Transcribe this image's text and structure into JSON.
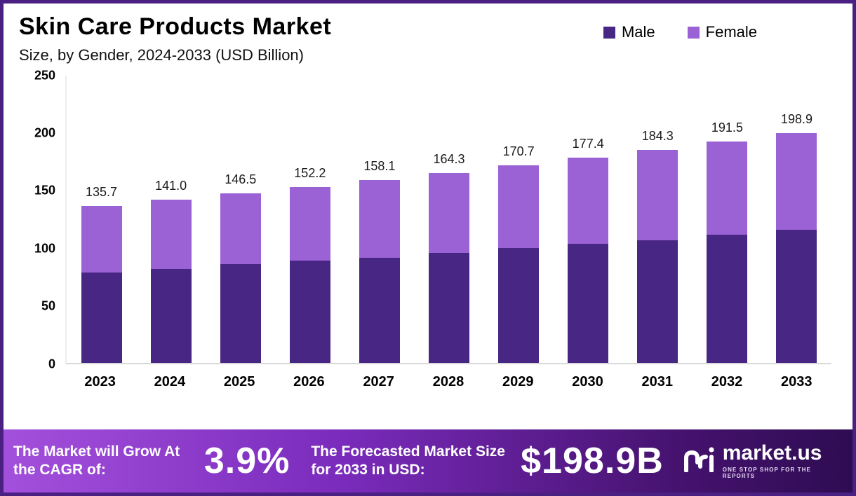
{
  "title": "Skin Care Products Market",
  "subtitle": "Size, by Gender, 2024-2033 (USD Billion)",
  "legend": [
    {
      "label": "Male",
      "color": "#482683"
    },
    {
      "label": "Female",
      "color": "#9B62D6"
    }
  ],
  "chart_data": {
    "type": "bar",
    "stacked": true,
    "title": "Skin Care Products Market Size, by Gender, 2024-2033 (USD Billion)",
    "categories": [
      "2023",
      "2024",
      "2025",
      "2026",
      "2027",
      "2028",
      "2029",
      "2030",
      "2031",
      "2032",
      "2033"
    ],
    "series": [
      {
        "name": "Male",
        "color": "#482683",
        "values": [
          78,
          81,
          85,
          88,
          91,
          95,
          99,
          103,
          106,
          111,
          115
        ]
      },
      {
        "name": "Female",
        "color": "#9B62D6",
        "values": [
          57.7,
          60.0,
          61.5,
          64.2,
          67.1,
          69.3,
          71.7,
          74.4,
          78.3,
          80.5,
          83.9
        ]
      }
    ],
    "totals": [
      "135.7",
      "141.0",
      "146.5",
      "152.2",
      "158.1",
      "164.3",
      "170.7",
      "177.4",
      "184.3",
      "191.5",
      "198.9"
    ],
    "xlabel": "",
    "ylabel": "",
    "ylim": [
      0,
      250
    ],
    "yticks": [
      0,
      50,
      100,
      150,
      200,
      250
    ],
    "grid": false,
    "legend_position": "top-right"
  },
  "footer": {
    "cagr_label": "The Market will Grow At the CAGR of:",
    "cagr_value": "3.9%",
    "forecast_label": "The Forecasted Market Size for 2033 in USD:",
    "forecast_value": "$198.9B",
    "brand": "market.us",
    "brand_tagline": "ONE STOP SHOP FOR THE REPORTS"
  }
}
